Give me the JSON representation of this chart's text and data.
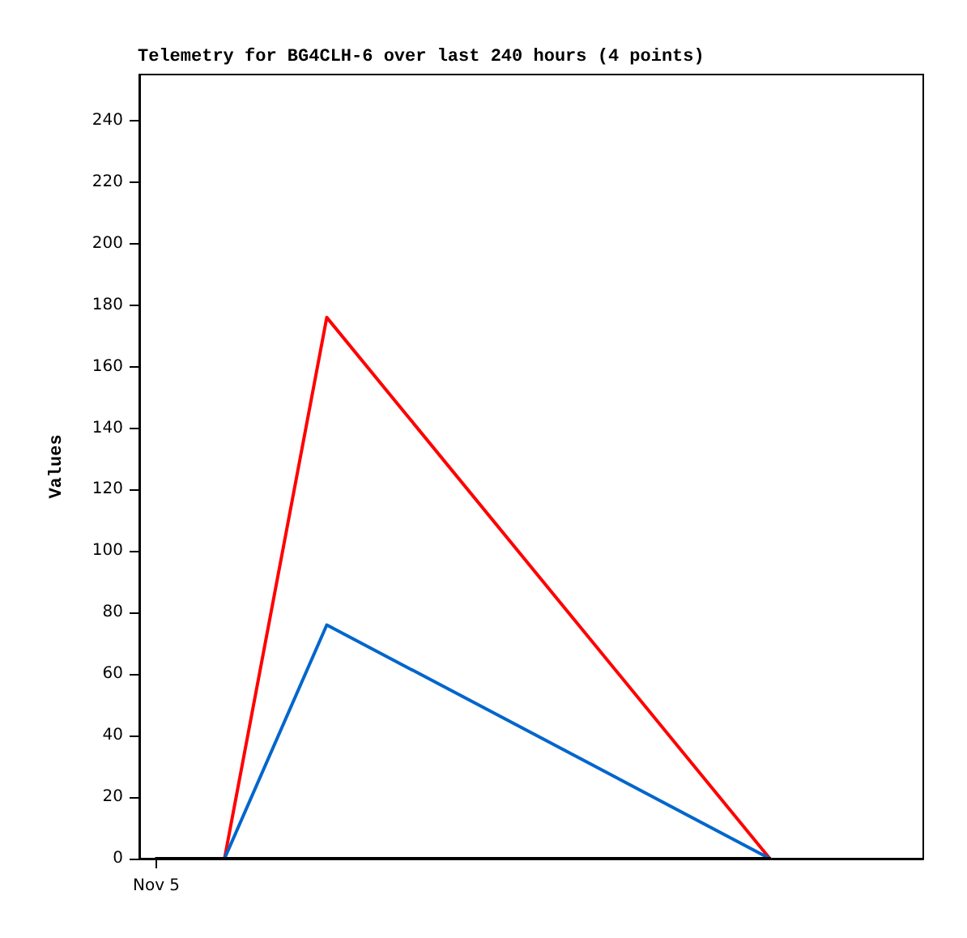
{
  "chart_data": {
    "type": "line",
    "title": "Telemetry for BG4CLH-6 over last 240 hours (4 points)",
    "ylabel": "Values",
    "categories": [
      "Nov 5",
      null,
      null,
      null,
      null,
      null,
      null,
      null,
      null,
      null,
      null,
      null,
      null,
      null,
      null,
      null,
      null,
      null,
      null,
      null,
      null,
      null,
      null
    ],
    "series": [
      {
        "color": "#ff0000",
        "values": [
          0,
          null,
          0,
          null,
          null,
          176,
          null,
          null,
          null,
          null,
          null,
          null,
          null,
          null,
          null,
          null,
          null,
          null,
          0,
          null,
          null,
          null,
          null
        ]
      },
      {
        "color": "#0066cc",
        "values": [
          0,
          null,
          0,
          null,
          null,
          76,
          null,
          null,
          null,
          null,
          null,
          null,
          null,
          null,
          null,
          null,
          null,
          null,
          0,
          null,
          null,
          null,
          null
        ]
      },
      {
        "color": "#000000",
        "values": [
          0,
          null,
          0,
          null,
          null,
          0,
          null,
          null,
          null,
          null,
          null,
          null,
          null,
          null,
          null,
          null,
          null,
          null,
          0,
          null,
          null,
          null,
          null
        ]
      }
    ],
    "ylim": [
      0,
      255
    ],
    "yticks": [
      0,
      20,
      40,
      60,
      80,
      100,
      120,
      140,
      160,
      180,
      200,
      220,
      240
    ],
    "grid": false,
    "marker": "none",
    "line_style": "solid"
  }
}
